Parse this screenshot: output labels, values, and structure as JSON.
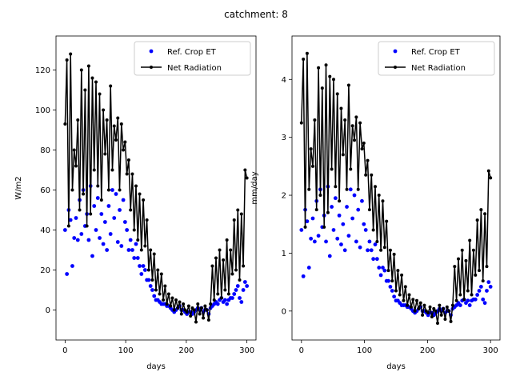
{
  "title": "catchment: 8",
  "chart_data": [
    {
      "type": "line",
      "xlabel": "days",
      "ylabel": "W/m2",
      "xlim": [
        -15,
        315
      ],
      "ylim": [
        -15,
        137
      ],
      "xticks": [
        0,
        100,
        200,
        300
      ],
      "yticks": [
        0,
        20,
        40,
        60,
        80,
        100,
        120
      ],
      "grid": false,
      "legend": "top-right",
      "series": [
        {
          "name": "Ref. Crop ET",
          "style": "dots",
          "color": "#0000ff",
          "x": [
            0,
            3,
            6,
            9,
            12,
            15,
            18,
            21,
            24,
            27,
            30,
            33,
            36,
            39,
            42,
            45,
            48,
            51,
            54,
            57,
            60,
            63,
            66,
            69,
            72,
            75,
            78,
            81,
            84,
            87,
            90,
            93,
            96,
            99,
            102,
            105,
            108,
            111,
            114,
            117,
            120,
            123,
            126,
            129,
            132,
            135,
            138,
            141,
            144,
            147,
            150,
            153,
            156,
            159,
            162,
            165,
            168,
            171,
            174,
            177,
            180,
            183,
            186,
            189,
            192,
            195,
            198,
            201,
            204,
            207,
            210,
            213,
            216,
            219,
            222,
            225,
            228,
            231,
            234,
            237,
            240,
            243,
            246,
            249,
            252,
            255,
            258,
            261,
            264,
            267,
            270,
            273,
            276,
            279,
            282,
            285,
            288,
            291,
            294,
            297,
            300
          ],
          "values": [
            40,
            18,
            50,
            45,
            22,
            36,
            46,
            35,
            55,
            38,
            60,
            42,
            48,
            35,
            62,
            27,
            52,
            40,
            56,
            36,
            48,
            33,
            44,
            30,
            52,
            38,
            60,
            46,
            58,
            34,
            50,
            32,
            55,
            44,
            40,
            30,
            35,
            30,
            26,
            33,
            26,
            22,
            18,
            22,
            20,
            15,
            15,
            12,
            10,
            7,
            5,
            5,
            4,
            3,
            3,
            3,
            2,
            2,
            1,
            0,
            -1,
            0,
            1,
            2,
            0,
            0,
            -1,
            -2,
            -1,
            -1,
            -2,
            -1,
            0,
            1,
            0,
            1,
            -1,
            0,
            0,
            -2,
            1,
            2,
            3,
            4,
            3,
            5,
            6,
            4,
            5,
            3,
            5,
            6,
            6,
            8,
            10,
            12,
            6,
            4,
            10,
            14,
            12
          ]
        },
        {
          "name": "Net Radiation",
          "style": "line-dots",
          "color": "#000000",
          "x": [
            0,
            3,
            6,
            9,
            12,
            15,
            18,
            21,
            24,
            27,
            30,
            33,
            36,
            39,
            42,
            45,
            48,
            51,
            54,
            57,
            60,
            63,
            66,
            69,
            72,
            75,
            78,
            81,
            84,
            87,
            90,
            93,
            96,
            99,
            102,
            105,
            108,
            111,
            114,
            117,
            120,
            123,
            126,
            129,
            132,
            135,
            138,
            141,
            144,
            147,
            150,
            153,
            156,
            159,
            162,
            165,
            168,
            171,
            174,
            177,
            180,
            183,
            186,
            189,
            192,
            195,
            198,
            201,
            204,
            207,
            210,
            213,
            216,
            219,
            222,
            225,
            228,
            231,
            234,
            237,
            240,
            243,
            246,
            249,
            252,
            255,
            258,
            261,
            264,
            267,
            270,
            273,
            276,
            279,
            282,
            285,
            288,
            291,
            294,
            297,
            300
          ],
          "values": [
            93,
            125,
            42,
            128,
            60,
            80,
            72,
            95,
            50,
            120,
            58,
            110,
            42,
            122,
            48,
            116,
            70,
            114,
            62,
            108,
            55,
            100,
            78,
            95,
            60,
            112,
            70,
            92,
            85,
            96,
            60,
            93,
            80,
            84,
            68,
            75,
            50,
            68,
            40,
            62,
            35,
            58,
            30,
            55,
            32,
            45,
            20,
            30,
            15,
            28,
            10,
            20,
            8,
            18,
            5,
            12,
            3,
            8,
            2,
            6,
            0,
            5,
            1,
            4,
            -2,
            3,
            0,
            -1,
            2,
            -3,
            1,
            0,
            -6,
            3,
            -2,
            1,
            -4,
            2,
            0,
            -5,
            3,
            22,
            5,
            26,
            8,
            30,
            6,
            25,
            10,
            35,
            8,
            30,
            18,
            45,
            20,
            50,
            15,
            48,
            22,
            70,
            66
          ]
        }
      ]
    },
    {
      "type": "line",
      "xlabel": "days",
      "ylabel": "mm/day",
      "xlim": [
        -15,
        315
      ],
      "ylim": [
        -0.5,
        4.75
      ],
      "xticks": [
        0,
        100,
        200,
        300
      ],
      "yticks": [
        0,
        1,
        2,
        3,
        4
      ],
      "grid": false,
      "legend": "top-right",
      "series": [
        {
          "name": "Ref. Crop ET",
          "style": "dots",
          "color": "#0000ff",
          "x": [
            0,
            3,
            6,
            9,
            12,
            15,
            18,
            21,
            24,
            27,
            30,
            33,
            36,
            39,
            42,
            45,
            48,
            51,
            54,
            57,
            60,
            63,
            66,
            69,
            72,
            75,
            78,
            81,
            84,
            87,
            90,
            93,
            96,
            99,
            102,
            105,
            108,
            111,
            114,
            117,
            120,
            123,
            126,
            129,
            132,
            135,
            138,
            141,
            144,
            147,
            150,
            153,
            156,
            159,
            162,
            165,
            168,
            171,
            174,
            177,
            180,
            183,
            186,
            189,
            192,
            195,
            198,
            201,
            204,
            207,
            210,
            213,
            216,
            219,
            222,
            225,
            228,
            231,
            234,
            237,
            240,
            243,
            246,
            249,
            252,
            255,
            258,
            261,
            264,
            267,
            270,
            273,
            276,
            279,
            282,
            285,
            288,
            291,
            294,
            297,
            300
          ],
          "values": [
            1.4,
            0.6,
            1.75,
            1.55,
            0.75,
            1.25,
            1.6,
            1.2,
            1.9,
            1.3,
            2.1,
            1.45,
            1.65,
            1.2,
            2.15,
            0.95,
            1.8,
            1.4,
            1.95,
            1.25,
            1.65,
            1.15,
            1.5,
            1.05,
            1.8,
            1.3,
            2.1,
            1.6,
            2.0,
            1.2,
            1.75,
            1.1,
            1.9,
            1.5,
            1.4,
            1.05,
            1.2,
            1.05,
            0.9,
            1.15,
            0.9,
            0.75,
            0.62,
            0.75,
            0.7,
            0.52,
            0.52,
            0.42,
            0.35,
            0.25,
            0.18,
            0.18,
            0.14,
            0.1,
            0.1,
            0.1,
            0.07,
            0.07,
            0.04,
            0.0,
            -0.03,
            0.0,
            0.04,
            0.07,
            0.0,
            0.0,
            -0.03,
            -0.07,
            -0.03,
            -0.03,
            -0.07,
            -0.03,
            0.0,
            0.04,
            0.0,
            0.04,
            -0.03,
            0.0,
            0.0,
            -0.07,
            0.04,
            0.07,
            0.1,
            0.14,
            0.1,
            0.18,
            0.2,
            0.14,
            0.18,
            0.1,
            0.18,
            0.2,
            0.2,
            0.28,
            0.35,
            0.42,
            0.2,
            0.14,
            0.35,
            0.5,
            0.42
          ]
        },
        {
          "name": "Net Radiation",
          "style": "line-dots",
          "color": "#000000",
          "x": [
            0,
            3,
            6,
            9,
            12,
            15,
            18,
            21,
            24,
            27,
            30,
            33,
            36,
            39,
            42,
            45,
            48,
            51,
            54,
            57,
            60,
            63,
            66,
            69,
            72,
            75,
            78,
            81,
            84,
            87,
            90,
            93,
            96,
            99,
            102,
            105,
            108,
            111,
            114,
            117,
            120,
            123,
            126,
            129,
            132,
            135,
            138,
            141,
            144,
            147,
            150,
            153,
            156,
            159,
            162,
            165,
            168,
            171,
            174,
            177,
            180,
            183,
            186,
            189,
            192,
            195,
            198,
            201,
            204,
            207,
            210,
            213,
            216,
            219,
            222,
            225,
            228,
            231,
            234,
            237,
            240,
            243,
            246,
            249,
            252,
            255,
            258,
            261,
            264,
            267,
            270,
            273,
            276,
            279,
            282,
            285,
            288,
            291,
            294,
            297,
            300
          ],
          "values": [
            3.25,
            4.35,
            1.45,
            4.45,
            2.1,
            2.8,
            2.5,
            3.3,
            1.75,
            4.2,
            2.0,
            3.85,
            1.45,
            4.25,
            1.7,
            4.05,
            2.45,
            4.0,
            2.15,
            3.75,
            1.9,
            3.5,
            2.7,
            3.3,
            2.1,
            3.9,
            2.45,
            3.2,
            2.95,
            3.35,
            2.1,
            3.25,
            2.8,
            2.9,
            2.35,
            2.6,
            1.75,
            2.35,
            1.4,
            2.15,
            1.2,
            2.0,
            1.05,
            1.9,
            1.1,
            1.55,
            0.7,
            1.05,
            0.52,
            0.98,
            0.35,
            0.7,
            0.28,
            0.62,
            0.18,
            0.42,
            0.1,
            0.28,
            0.07,
            0.2,
            0.0,
            0.18,
            0.04,
            0.14,
            -0.07,
            0.1,
            0.0,
            -0.03,
            0.07,
            -0.1,
            0.04,
            0.0,
            -0.21,
            0.1,
            -0.07,
            0.04,
            -0.14,
            0.07,
            0.0,
            -0.18,
            0.1,
            0.77,
            0.18,
            0.9,
            0.28,
            1.05,
            0.2,
            0.87,
            0.35,
            1.22,
            0.28,
            1.05,
            0.62,
            1.57,
            0.7,
            1.75,
            0.52,
            1.68,
            0.77,
            2.42,
            2.3
          ]
        }
      ]
    }
  ]
}
